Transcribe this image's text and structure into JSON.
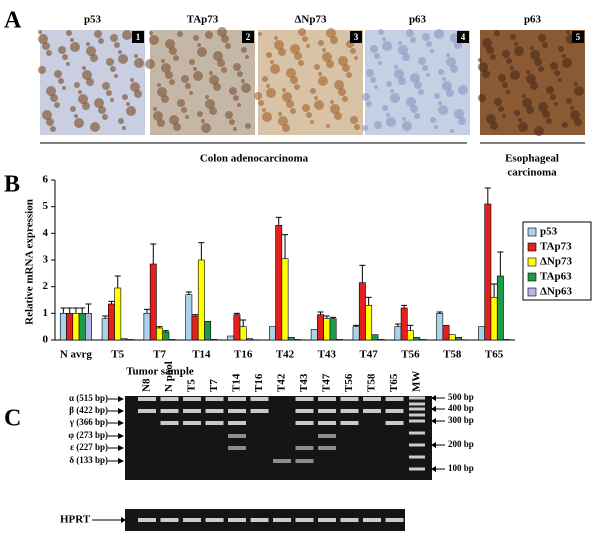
{
  "panel_a": {
    "letter": "A",
    "images": [
      {
        "label": "p53",
        "number": "1"
      },
      {
        "label": "TAp73",
        "number": "2"
      },
      {
        "label": "ΔNp73",
        "number": "3"
      },
      {
        "label": "p63",
        "number": "4"
      },
      {
        "label": "p63",
        "number": "5"
      }
    ],
    "group_left": "Colon adenocarcinoma",
    "group_right": [
      "Esophageal",
      "carcinoma"
    ]
  },
  "chart_data": {
    "type": "bar",
    "letter": "B",
    "ylabel": "Relative mRNA expression",
    "xlabel": "Tumor sample",
    "categories": [
      "N avrg",
      "T5",
      "T7",
      "T14",
      "T16",
      "T42",
      "T43",
      "T47",
      "T56",
      "T58",
      "T65"
    ],
    "ylim": [
      0,
      6
    ],
    "yticks": [
      0,
      1,
      2,
      3,
      4,
      5,
      6
    ],
    "legend": "right",
    "series": [
      {
        "name": "p53",
        "color": "#a9d3ea",
        "values": [
          1,
          0.8,
          1.0,
          1.7,
          0.15,
          0.5,
          0.4,
          0.5,
          0.5,
          1.0,
          0.5
        ],
        "errors": [
          0.2,
          0.1,
          0.15,
          0.1,
          null,
          null,
          null,
          0.05,
          0.1,
          0.05,
          null
        ]
      },
      {
        "name": "TAp73",
        "color": "#e3201b",
        "values": [
          1,
          1.35,
          2.85,
          0.9,
          0.95,
          4.3,
          0.95,
          2.15,
          1.2,
          0.55,
          5.1
        ],
        "errors": [
          0.2,
          0.1,
          0.75,
          0.05,
          0.05,
          0.3,
          0.1,
          0.65,
          0.1,
          null,
          0.6
        ]
      },
      {
        "name": "ΔNp73",
        "color": "#ffff00",
        "values": [
          1,
          1.95,
          0.45,
          3.0,
          0.5,
          3.05,
          0.8,
          1.3,
          0.35,
          0.2,
          1.6
        ],
        "errors": [
          0.2,
          0.45,
          0.05,
          0.65,
          0.25,
          0.9,
          0.1,
          0.3,
          0.2,
          null,
          0.5
        ]
      },
      {
        "name": "TAp63",
        "color": "#1f9a48",
        "values": [
          1,
          0.05,
          0.3,
          0.7,
          0.05,
          0.1,
          0.8,
          0.2,
          0.1,
          0.1,
          2.4
        ],
        "errors": [
          0.2,
          null,
          0.05,
          null,
          null,
          null,
          0.05,
          null,
          null,
          null,
          0.9
        ]
      },
      {
        "name": "ΔNp63",
        "color": "#b3b6e6",
        "values": [
          1,
          0.02,
          0.02,
          0.02,
          0.01,
          0.02,
          0.02,
          0.02,
          0.02,
          0.01,
          0.02
        ],
        "errors": [
          0.35,
          null,
          null,
          null,
          null,
          null,
          null,
          null,
          null,
          null,
          null
        ]
      }
    ]
  },
  "panel_c": {
    "letter": "C",
    "lanes": [
      "N8",
      "N pool",
      "T5",
      "T7",
      "T14",
      "T16",
      "T42",
      "T43",
      "T47",
      "T56",
      "T58",
      "T65",
      "MW"
    ],
    "isoforms": [
      "α (515 bp)",
      "β (422 bp)",
      "γ (366 bp)",
      "φ (273 bp)",
      "ε (227 bp)",
      "δ (133 bp)"
    ],
    "markers": [
      "500 bp",
      "400 bp",
      "300 bp",
      "200 bp",
      "100 bp"
    ],
    "control": "HPRT"
  }
}
